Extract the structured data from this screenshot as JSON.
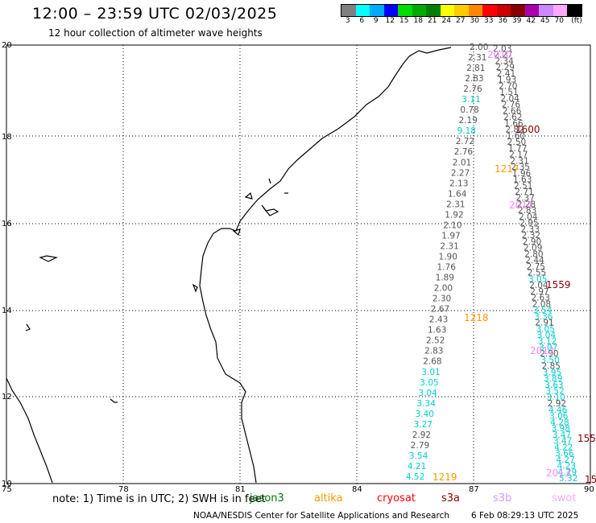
{
  "header": {
    "title": "12:00 – 23:59 UTC 02/03/2025",
    "subtitle": "12 hour collection of altimeter wave heights"
  },
  "color_scale": {
    "colors": [
      "#808080",
      "#00ffff",
      "#00aaff",
      "#0000ff",
      "#00dd00",
      "#00aa00",
      "#008000",
      "#ffff00",
      "#ffcc00",
      "#ff8800",
      "#ff0000",
      "#cc0000",
      "#880000",
      "#aa00aa",
      "#cc88ff",
      "#ffaaff",
      "#000000"
    ],
    "labels": [
      "3",
      "6",
      "9",
      "12",
      "15",
      "18",
      "21",
      "24",
      "27",
      "30",
      "33",
      "36",
      "39",
      "42",
      "45",
      "70",
      "(ft)"
    ]
  },
  "axes": {
    "lon_labels": [
      "75",
      "78",
      "81",
      "84",
      "87",
      "90"
    ],
    "lat_labels": [
      "20",
      "18",
      "16",
      "14",
      "12",
      "10"
    ]
  },
  "tracks": {
    "track_a": [
      "2.00",
      "2.31",
      "2.81",
      "2.83",
      "2.76",
      "3.11",
      "0.78",
      "2.19",
      "9.18",
      "2.72",
      "2.76",
      "2.01",
      "2.27",
      "2.13",
      "1.64",
      "2.31",
      "1.92",
      "2.10",
      "1.97",
      "2.31",
      "1.90",
      "1.76",
      "1.89",
      "2.00",
      "2.30",
      "2.67",
      "2.43",
      "1.63",
      "2.52",
      "2.83",
      "2.68",
      "3.01",
      "3.05",
      "3.04",
      "3.34",
      "3.40",
      "3.27",
      "2.92",
      "2.79",
      "3.54",
      "4.21",
      "4.52"
    ],
    "track_b": [
      "2.03",
      "2.27",
      "2.34",
      "2.29",
      "2.41",
      "1.93",
      "2.70",
      "1.51",
      "2.04",
      "2.76",
      "2.66",
      "2.62",
      "1.66",
      "2.82",
      "1.60",
      "2.50",
      "1.77",
      "2.17",
      "2.31",
      "2.35",
      "1.96",
      "1.63",
      "2.51",
      "2.71",
      "2.37",
      "2.28",
      "2.83",
      "2.04",
      "2.95",
      "2.33",
      "2.32",
      "2.90",
      "2.09",
      "2.80",
      "2.44",
      "2.75",
      "2.55",
      "3.05",
      "2.04",
      "2.97",
      "2.63",
      "2.08",
      "3.54",
      "3.36",
      "2.91",
      "3.05",
      "3.04",
      "3.12",
      "3.07",
      "2.90",
      "3.50",
      "2.85",
      "3.95",
      "3.89",
      "3.63",
      "3.52",
      "3.10",
      "2.92",
      "4.46",
      "3.06",
      "4.28",
      "3.98",
      "3.47",
      "3.47",
      "4.22",
      "3.66",
      "4.27",
      "4.23",
      "4.29",
      "5.32"
    ]
  },
  "times": [
    "2010",
    "1600",
    "1217",
    "2011",
    "1559",
    "1218",
    "2012",
    "1219",
    "2013",
    "155",
    "15"
  ],
  "notes": {
    "note_text": "note:  1) Time is in UTC; 2) SWH is in feet",
    "satellites": [
      "jason3",
      "altika",
      "cryosat",
      "s3a",
      "s3b",
      "swot"
    ]
  },
  "footer": {
    "credit": "NOAA/NESDIS Center for Satellite Applications and Research",
    "timestamp": "6 Feb 08:29:13 UTC 2025"
  }
}
